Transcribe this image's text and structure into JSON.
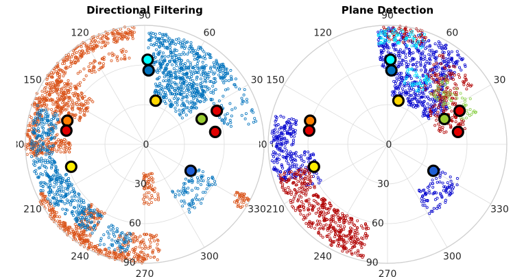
{
  "chart_data": [
    {
      "type": "scatter",
      "coordinate_system": "polar",
      "title": "Directional Filtering",
      "angle_ticks": [
        "0",
        "30",
        "60",
        "90",
        "120",
        "150",
        "180",
        "210",
        "240",
        "270",
        "300",
        "330"
      ],
      "radial_ticks": [
        "0",
        "30",
        "60",
        "90"
      ],
      "radial_range": [
        0,
        90
      ],
      "grid": true,
      "series": [
        {
          "color": "#d95319",
          "marker": "open-circle",
          "regions": [
            {
              "t0": 95,
              "t1": 185,
              "r0": 80,
              "r1": 90,
              "n": 380
            },
            {
              "t0": 140,
              "t1": 160,
              "r0": 50,
              "r1": 82,
              "n": 180
            },
            {
              "t0": 176,
              "t1": 186,
              "r0": 56,
              "r1": 88,
              "n": 120
            },
            {
              "t0": 205,
              "t1": 270,
              "r0": 84,
              "r1": 90,
              "n": 220
            },
            {
              "t0": 228,
              "t1": 240,
              "r0": 60,
              "r1": 86,
              "n": 110
            },
            {
              "t0": 254,
              "t1": 278,
              "r0": 68,
              "r1": 88,
              "n": 120
            },
            {
              "t0": 268,
              "t1": 285,
              "r0": 22,
              "r1": 46,
              "n": 60
            },
            {
              "t0": 326,
              "t1": 334,
              "r0": 78,
              "r1": 90,
              "n": 40
            },
            {
              "t0": 100,
              "t1": 175,
              "r0": 66,
              "r1": 74,
              "n": 110
            }
          ]
        },
        {
          "color": "#0072bd",
          "marker": "open-circle",
          "regions": [
            {
              "t0": 40,
              "t1": 88,
              "r0": 55,
              "r1": 85,
              "n": 420
            },
            {
              "t0": 35,
              "t1": 80,
              "r0": 34,
              "r1": 58,
              "n": 220
            },
            {
              "t0": 160,
              "t1": 215,
              "r0": 68,
              "r1": 86,
              "n": 260
            },
            {
              "t0": 200,
              "t1": 240,
              "r0": 62,
              "r1": 80,
              "n": 180
            },
            {
              "t0": 300,
              "t1": 335,
              "r0": 40,
              "r1": 62,
              "n": 90
            },
            {
              "t0": 10,
              "t1": 45,
              "r0": 60,
              "r1": 86,
              "n": 70
            },
            {
              "t0": 245,
              "t1": 262,
              "r0": 66,
              "r1": 84,
              "n": 60
            }
          ]
        }
      ],
      "markers": [
        {
          "theta": 88,
          "r": 64,
          "fill": "#00ffff"
        },
        {
          "theta": 87,
          "r": 56,
          "fill": "#0072bd"
        },
        {
          "theta": 76,
          "r": 34,
          "fill": "#ffd700"
        },
        {
          "theta": 163,
          "r": 61,
          "fill": "#ff7f00"
        },
        {
          "theta": 170,
          "r": 60,
          "fill": "#e00000"
        },
        {
          "theta": 24,
          "r": 47,
          "fill": "#9acd32"
        },
        {
          "theta": 25,
          "r": 60,
          "fill": "#e00000"
        },
        {
          "theta": 10,
          "r": 54,
          "fill": "#e00000"
        },
        {
          "theta": 197,
          "r": 58,
          "fill": "#ffee00"
        },
        {
          "theta": 330,
          "r": 40,
          "fill": "#1f5fd6"
        }
      ]
    },
    {
      "type": "scatter",
      "coordinate_system": "polar",
      "title": "Plane Detection",
      "angle_ticks": [
        "0",
        "30",
        "60",
        "90",
        "120",
        "150",
        "180",
        "210",
        "240",
        "270",
        "300",
        "330"
      ],
      "radial_ticks": [
        "0",
        "30",
        "60",
        "90"
      ],
      "radial_range": [
        0,
        90
      ],
      "grid": true,
      "series": [
        {
          "color": "#0000cd",
          "marker": "open-circle",
          "regions": [
            {
              "t0": 45,
              "t1": 95,
              "r0": 58,
              "r1": 88,
              "n": 360
            },
            {
              "t0": 30,
              "t1": 85,
              "r0": 34,
              "r1": 56,
              "n": 240
            },
            {
              "t0": 165,
              "t1": 200,
              "r0": 70,
              "r1": 88,
              "n": 200
            },
            {
              "t0": 300,
              "t1": 335,
              "r0": 42,
              "r1": 62,
              "n": 90
            },
            {
              "t0": 185,
              "t1": 210,
              "r0": 56,
              "r1": 70,
              "n": 50
            }
          ]
        },
        {
          "color": "#b00000",
          "marker": "open-circle",
          "regions": [
            {
              "t0": 195,
              "t1": 240,
              "r0": 62,
              "r1": 86,
              "n": 300
            },
            {
              "t0": 240,
              "t1": 258,
              "r0": 62,
              "r1": 88,
              "n": 150
            },
            {
              "t0": 35,
              "t1": 60,
              "r0": 50,
              "r1": 80,
              "n": 110
            },
            {
              "t0": 10,
              "t1": 40,
              "r0": 38,
              "r1": 62,
              "n": 90
            },
            {
              "t0": 70,
              "t1": 92,
              "r0": 78,
              "r1": 90,
              "n": 60
            }
          ]
        },
        {
          "color": "#00e5ff",
          "marker": "open-circle",
          "regions": [
            {
              "t0": 70,
              "t1": 95,
              "r0": 76,
              "r1": 88,
              "n": 70
            },
            {
              "t0": 55,
              "t1": 75,
              "r0": 46,
              "r1": 60,
              "n": 40
            }
          ]
        },
        {
          "color": "#8fd14f",
          "marker": "open-circle",
          "regions": [
            {
              "t0": 30,
              "t1": 50,
              "r0": 50,
              "r1": 68,
              "n": 45
            },
            {
              "t0": 18,
              "t1": 30,
              "r0": 56,
              "r1": 72,
              "n": 25
            }
          ]
        }
      ],
      "markers": [
        {
          "theta": 88,
          "r": 64,
          "fill": "#00ffff"
        },
        {
          "theta": 87,
          "r": 56,
          "fill": "#0072bd"
        },
        {
          "theta": 76,
          "r": 34,
          "fill": "#ffd700"
        },
        {
          "theta": 163,
          "r": 61,
          "fill": "#ff7f00"
        },
        {
          "theta": 170,
          "r": 60,
          "fill": "#e00000"
        },
        {
          "theta": 24,
          "r": 47,
          "fill": "#9acd32"
        },
        {
          "theta": 25,
          "r": 60,
          "fill": "#e00000"
        },
        {
          "theta": 10,
          "r": 54,
          "fill": "#e00000"
        },
        {
          "theta": 197,
          "r": 58,
          "fill": "#ffee00"
        },
        {
          "theta": 330,
          "r": 40,
          "fill": "#1f5fd6"
        }
      ]
    }
  ]
}
